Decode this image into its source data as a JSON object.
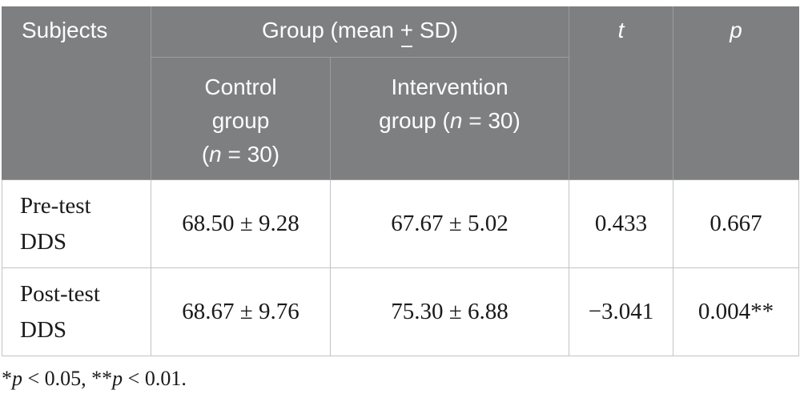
{
  "table": {
    "header": {
      "subjects_label": "Subjects",
      "group_label": {
        "segments": [
          {
            "t": "Group (mean "
          },
          {
            "t": "+",
            "u": true
          },
          {
            "t": " SD)"
          }
        ]
      },
      "control_label": {
        "segments": [
          {
            "t": "Control"
          },
          {
            "br": true
          },
          {
            "t": "group"
          },
          {
            "br": true
          },
          {
            "t": "("
          },
          {
            "t": "n",
            "i": true
          },
          {
            "t": " = 30)"
          }
        ]
      },
      "intervention_label": {
        "segments": [
          {
            "t": "Intervention"
          },
          {
            "br": true
          },
          {
            "t": "group ("
          },
          {
            "t": "n",
            "i": true
          },
          {
            "t": " = 30)"
          }
        ]
      },
      "t_label": "t",
      "p_label": "p"
    },
    "rows": [
      {
        "label": {
          "segments": [
            {
              "t": "Pre-test"
            },
            {
              "br": true
            },
            {
              "t": "DDS"
            }
          ]
        },
        "control": "68.50 ± 9.28",
        "intervention": "67.67 ± 5.02",
        "t": "0.433",
        "p": "0.667"
      },
      {
        "label": {
          "segments": [
            {
              "t": "Post-test"
            },
            {
              "br": true
            },
            {
              "t": "DDS"
            }
          ]
        },
        "control": "68.67 ± 9.76",
        "intervention": "75.30 ± 6.88",
        "t": "−3.041",
        "p": "0.004**"
      }
    ],
    "footnote": {
      "segments": [
        {
          "t": "*"
        },
        {
          "t": "p",
          "i": true
        },
        {
          "t": " < 0.05, **"
        },
        {
          "t": "p",
          "i": true
        },
        {
          "t": " < 0.01."
        }
      ]
    }
  },
  "colors": {
    "header_bg": "#7e7f80",
    "header_border": "#9c9d9f",
    "body_border": "#c2c3c4",
    "header_text": "#fdfdfd",
    "body_text": "#1a1a1a"
  }
}
